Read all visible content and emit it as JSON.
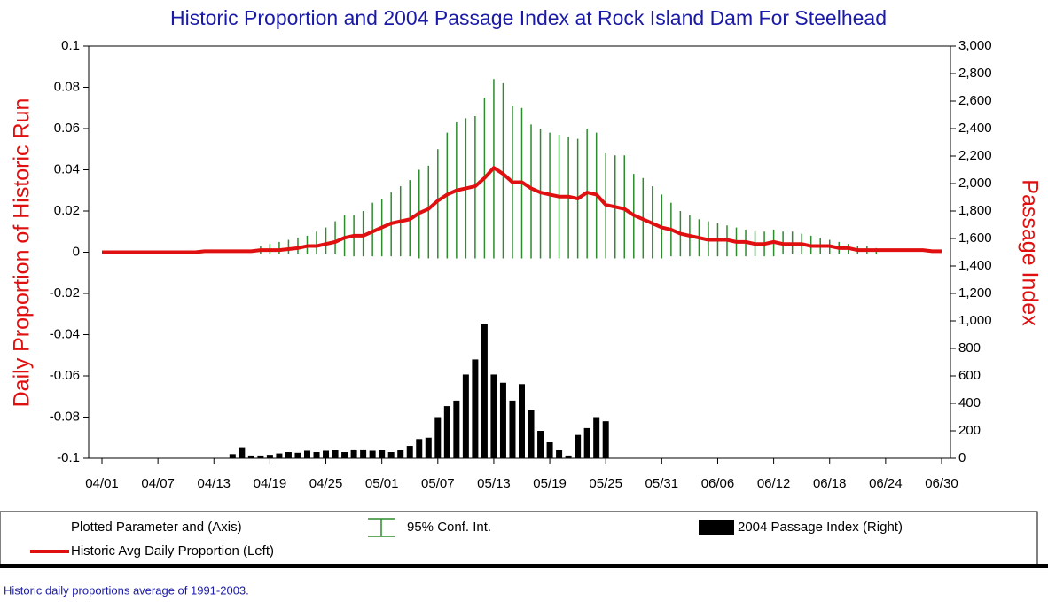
{
  "chart_data": {
    "type": "combo",
    "title": "Historic Proportion and 2004 Passage Index at Rock Island Dam  For Steelhead",
    "ylabel": "Daily Proportion of Historic Run",
    "y2label": "Passage Index",
    "note": "Historic daily proportions average of 1991-2003.",
    "legend_title": "Plotted Parameter and (Axis)",
    "categories": [
      "04/01",
      null,
      null,
      null,
      null,
      null,
      "04/07",
      null,
      null,
      null,
      null,
      null,
      "04/13",
      null,
      null,
      null,
      null,
      null,
      "04/19",
      null,
      null,
      null,
      null,
      null,
      "04/25",
      null,
      null,
      null,
      null,
      null,
      "05/01",
      null,
      null,
      null,
      null,
      null,
      "05/07",
      null,
      null,
      null,
      null,
      null,
      "05/13",
      null,
      null,
      null,
      null,
      null,
      "05/19",
      null,
      null,
      null,
      null,
      null,
      "05/25",
      null,
      null,
      null,
      null,
      null,
      "05/31",
      null,
      null,
      null,
      null,
      null,
      "06/06",
      null,
      null,
      null,
      null,
      null,
      "06/12",
      null,
      null,
      null,
      null,
      null,
      "06/18",
      null,
      null,
      null,
      null,
      null,
      "06/24",
      null,
      null,
      null,
      null,
      null,
      "06/30"
    ],
    "ylim": [
      -0.1,
      0.1
    ],
    "yticks": [
      0.1,
      0.08,
      0.06,
      0.04,
      0.02,
      0,
      -0.02,
      -0.04,
      -0.06,
      -0.08,
      -0.1
    ],
    "y2lim": [
      0,
      3000
    ],
    "y2ticks": [
      {
        "value": 3000,
        "label": "3,000"
      },
      {
        "value": 2800,
        "label": "2,800"
      },
      {
        "value": 2600,
        "label": "2,600"
      },
      {
        "value": 2400,
        "label": "2,400"
      },
      {
        "value": 2200,
        "label": "2,200"
      },
      {
        "value": 2000,
        "label": "2,000"
      },
      {
        "value": 1800,
        "label": "1,800"
      },
      {
        "value": 1600,
        "label": "1,600"
      },
      {
        "value": 1400,
        "label": "1,400"
      },
      {
        "value": 1200,
        "label": "1,200"
      },
      {
        "value": 1000,
        "label": "1,000"
      },
      800,
      600,
      400,
      200,
      0
    ],
    "series": [
      {
        "name": "Historic Avg Daily Proportion (Left)",
        "type": "line",
        "color": "#e01010",
        "axis": "y",
        "values": [
          0,
          0,
          0,
          0,
          0,
          0,
          0,
          0,
          0,
          0,
          0,
          0.0005,
          0.0005,
          0.0005,
          0.0005,
          0.0005,
          0.0005,
          0.001,
          0.001,
          0.001,
          0.0015,
          0.002,
          0.003,
          0.003,
          0.004,
          0.005,
          0.007,
          0.008,
          0.008,
          0.01,
          0.012,
          0.014,
          0.015,
          0.016,
          0.019,
          0.021,
          0.025,
          0.028,
          0.03,
          0.031,
          0.032,
          0.036,
          0.041,
          0.038,
          0.034,
          0.034,
          0.031,
          0.029,
          0.028,
          0.027,
          0.027,
          0.026,
          0.029,
          0.028,
          0.023,
          0.022,
          0.021,
          0.018,
          0.016,
          0.014,
          0.012,
          0.011,
          0.009,
          0.008,
          0.007,
          0.006,
          0.006,
          0.006,
          0.005,
          0.005,
          0.004,
          0.004,
          0.005,
          0.004,
          0.004,
          0.004,
          0.003,
          0.003,
          0.003,
          0.002,
          0.002,
          0.001,
          0.001,
          0.001,
          0.001,
          0.001,
          0.001,
          0.001,
          0.001,
          0.0005,
          0.0005
        ]
      },
      {
        "name": "95% Conf. Int.",
        "type": "errorbar",
        "color": "#2e8b2e",
        "axis": "y",
        "low": [
          null,
          null,
          null,
          null,
          null,
          null,
          null,
          null,
          null,
          null,
          null,
          null,
          null,
          null,
          null,
          null,
          null,
          -0.001,
          -0.001,
          -0.001,
          -0.001,
          -0.001,
          -0.001,
          -0.001,
          -0.001,
          -0.001,
          -0.002,
          -0.002,
          -0.002,
          -0.002,
          -0.002,
          -0.002,
          -0.002,
          -0.002,
          -0.003,
          -0.003,
          -0.003,
          -0.003,
          -0.003,
          -0.003,
          -0.003,
          -0.003,
          -0.003,
          -0.003,
          -0.003,
          -0.003,
          -0.003,
          -0.003,
          -0.003,
          -0.003,
          -0.003,
          -0.003,
          -0.003,
          -0.003,
          -0.003,
          -0.003,
          -0.003,
          -0.003,
          -0.003,
          -0.003,
          -0.003,
          -0.002,
          -0.002,
          -0.002,
          -0.002,
          -0.002,
          -0.002,
          -0.002,
          -0.002,
          -0.002,
          -0.002,
          -0.002,
          -0.002,
          -0.001,
          -0.001,
          -0.001,
          -0.001,
          -0.001,
          -0.001,
          -0.001,
          -0.001,
          -0.001,
          -0.001,
          -0.001,
          null,
          null,
          null,
          null,
          null,
          null,
          null
        ],
        "high": [
          null,
          null,
          null,
          null,
          null,
          null,
          null,
          null,
          null,
          null,
          null,
          null,
          null,
          null,
          null,
          null,
          null,
          0.003,
          0.004,
          0.005,
          0.006,
          0.007,
          0.008,
          0.01,
          0.012,
          0.015,
          0.018,
          0.018,
          0.02,
          0.024,
          0.026,
          0.029,
          0.032,
          0.035,
          0.04,
          0.042,
          0.05,
          0.058,
          0.063,
          0.065,
          0.066,
          0.075,
          0.084,
          0.082,
          0.071,
          0.07,
          0.062,
          0.06,
          0.058,
          0.057,
          0.056,
          0.055,
          0.06,
          0.058,
          0.048,
          0.047,
          0.047,
          0.038,
          0.036,
          0.032,
          0.028,
          0.024,
          0.02,
          0.018,
          0.016,
          0.015,
          0.014,
          0.013,
          0.012,
          0.011,
          0.01,
          0.01,
          0.011,
          0.01,
          0.01,
          0.009,
          0.008,
          0.007,
          0.006,
          0.005,
          0.004,
          0.003,
          0.003,
          0.002,
          null,
          null,
          null,
          null,
          null,
          null,
          null
        ]
      },
      {
        "name": "2004 Passage Index (Right)",
        "type": "bar",
        "color": "#000000",
        "axis": "y2",
        "values": [
          null,
          null,
          null,
          null,
          null,
          null,
          null,
          null,
          null,
          null,
          null,
          null,
          null,
          null,
          30,
          80,
          20,
          20,
          25,
          35,
          45,
          40,
          55,
          45,
          55,
          60,
          45,
          65,
          65,
          55,
          60,
          45,
          60,
          90,
          140,
          150,
          300,
          380,
          420,
          610,
          720,
          980,
          610,
          550,
          420,
          540,
          350,
          200,
          120,
          60,
          20,
          170,
          220,
          300,
          270,
          null,
          null,
          null,
          null,
          null,
          null,
          null,
          null,
          null,
          null,
          null,
          null,
          null,
          null,
          null,
          null,
          null,
          null,
          null,
          null,
          null,
          null,
          null,
          null,
          null,
          null,
          null,
          null,
          null,
          null,
          null,
          null,
          null,
          null,
          null,
          null
        ]
      }
    ]
  }
}
